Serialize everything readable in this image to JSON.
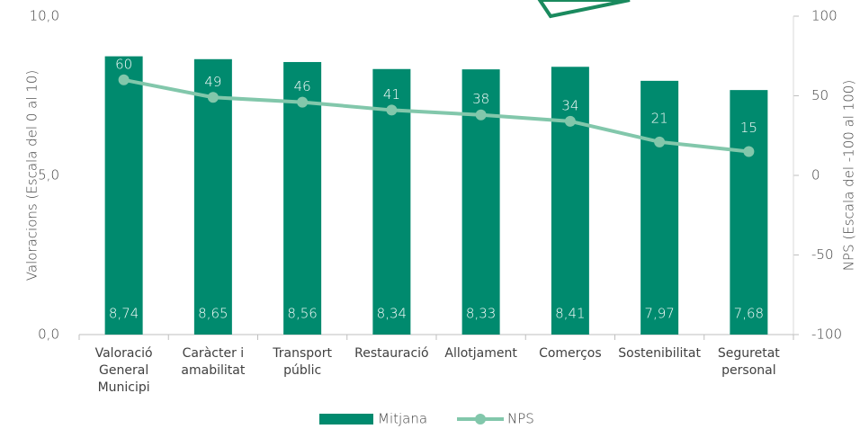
{
  "chart_data": {
    "type": "bar",
    "categories": [
      "Valoració General Municipi",
      "Caràcter i amabilitat",
      "Transport públic",
      "Restauració",
      "Allotjament",
      "Comerços",
      "Sostenibilitat",
      "Seguretat personal"
    ],
    "series": [
      {
        "name": "Mitjana",
        "type": "bar",
        "color": "#008a6e",
        "values": [
          8.74,
          8.65,
          8.56,
          8.34,
          8.33,
          8.41,
          7.97,
          7.68
        ],
        "value_labels": [
          "8,74",
          "8,65",
          "8,56",
          "8,34",
          "8,33",
          "8,41",
          "7,97",
          "7,68"
        ]
      },
      {
        "name": "NPS",
        "type": "line",
        "axis": "y2",
        "color": "#82c7ab",
        "values": [
          60,
          49,
          46,
          41,
          38,
          34,
          21,
          15
        ]
      }
    ],
    "ylabel": "Valoracions (Escala  del 0 al 10)",
    "y2label": "NPS (Escala  del -100 al 100)",
    "ylim": [
      0,
      10
    ],
    "yticks": [
      {
        "value": 0,
        "label": "0,0"
      },
      {
        "value": 5,
        "label": "5,0"
      },
      {
        "value": 10,
        "label": "10,0"
      }
    ],
    "y2lim": [
      -100,
      100
    ],
    "y2ticks": [
      -100,
      -50,
      0,
      50,
      100
    ],
    "legend": "bottom"
  }
}
